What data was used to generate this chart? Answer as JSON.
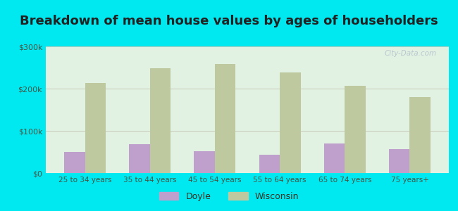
{
  "title": "Breakdown of mean house values by ages of householders",
  "categories": [
    "25 to 34 years",
    "35 to 44 years",
    "45 to 54 years",
    "55 to 64 years",
    "65 to 74 years",
    "75 years+"
  ],
  "doyle_values": [
    50000,
    68000,
    52000,
    43000,
    70000,
    57000
  ],
  "wisconsin_values": [
    213000,
    248000,
    258000,
    238000,
    207000,
    180000
  ],
  "doyle_color": "#bf9fcc",
  "wisconsin_color": "#bec9a0",
  "ylim": [
    0,
    300000
  ],
  "yticks": [
    0,
    100000,
    200000,
    300000
  ],
  "ytick_labels": [
    "$0",
    "$100k",
    "$200k",
    "$300k"
  ],
  "background_outer": "#00e8f0",
  "background_inner": "#e2f2e2",
  "grid_color": "#c8c8b8",
  "title_fontsize": 13,
  "legend_labels": [
    "Doyle",
    "Wisconsin"
  ],
  "watermark": "City-Data.com"
}
